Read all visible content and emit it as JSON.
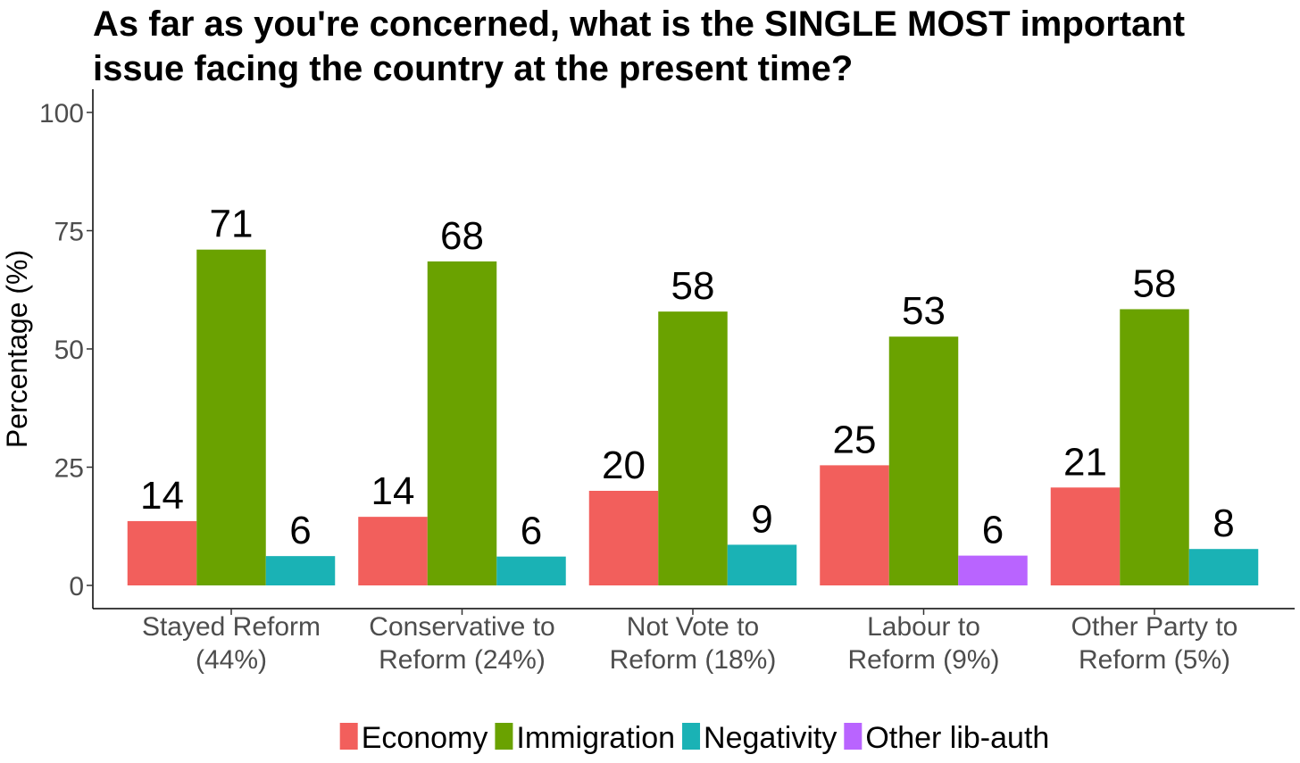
{
  "chart_data": {
    "type": "bar",
    "title": [
      "As far as you're concerned, what is the SINGLE MOST important",
      "issue facing the country at the present time?"
    ],
    "ylabel": "Percentage (%)",
    "xlabel": "",
    "ylim": [
      0,
      100
    ],
    "yticks": [
      0,
      25,
      50,
      75,
      100
    ],
    "grid": false,
    "legend_position": "bottom",
    "categories": [
      [
        "Stayed Reform",
        "(44%)"
      ],
      [
        "Conservative to",
        "Reform (24%)"
      ],
      [
        "Not Vote to",
        "Reform (18%)"
      ],
      [
        "Labour to",
        "Reform (9%)"
      ],
      [
        "Other Party to",
        "Reform (5%)"
      ]
    ],
    "legend": [
      {
        "name": "Economy",
        "color": "#F25F5C"
      },
      {
        "name": "Immigration",
        "color": "#6AA200"
      },
      {
        "name": "Negativity",
        "color": "#1AB2B5"
      },
      {
        "name": "Other lib-auth",
        "color": "#B964FF"
      }
    ],
    "groups": [
      {
        "bars": [
          {
            "series": "Economy",
            "value": 13.6,
            "label": "14"
          },
          {
            "series": "Immigration",
            "value": 71.0,
            "label": "71"
          },
          {
            "series": "Negativity",
            "value": 6.2,
            "label": "6"
          }
        ]
      },
      {
        "bars": [
          {
            "series": "Economy",
            "value": 14.5,
            "label": "14"
          },
          {
            "series": "Immigration",
            "value": 68.5,
            "label": "68"
          },
          {
            "series": "Negativity",
            "value": 6.1,
            "label": "6"
          }
        ]
      },
      {
        "bars": [
          {
            "series": "Economy",
            "value": 20.0,
            "label": "20"
          },
          {
            "series": "Immigration",
            "value": 57.9,
            "label": "58"
          },
          {
            "series": "Negativity",
            "value": 8.6,
            "label": "9"
          }
        ]
      },
      {
        "bars": [
          {
            "series": "Economy",
            "value": 25.4,
            "label": "25"
          },
          {
            "series": "Immigration",
            "value": 52.6,
            "label": "53"
          },
          {
            "series": "Other lib-auth",
            "value": 6.3,
            "label": "6"
          }
        ]
      },
      {
        "bars": [
          {
            "series": "Economy",
            "value": 20.7,
            "label": "21"
          },
          {
            "series": "Immigration",
            "value": 58.4,
            "label": "58"
          },
          {
            "series": "Negativity",
            "value": 7.7,
            "label": "8"
          }
        ]
      }
    ]
  }
}
